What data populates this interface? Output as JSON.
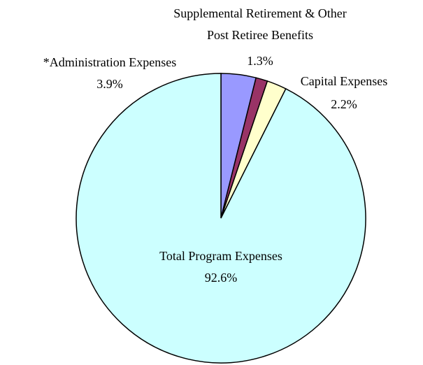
{
  "chart_data": {
    "type": "pie",
    "categories": [
      "*Administration Expenses",
      "Supplemental Retirement & Other Post Retiree Benefits",
      "Capital Expenses",
      "Total Program Expenses"
    ],
    "values": [
      3.9,
      1.3,
      2.2,
      92.6
    ],
    "value_labels": [
      "3.9%",
      "1.3%",
      "2.2%",
      "92.6%"
    ],
    "colors": [
      "#9999ff",
      "#993366",
      "#ffffcc",
      "#ccffff"
    ]
  }
}
